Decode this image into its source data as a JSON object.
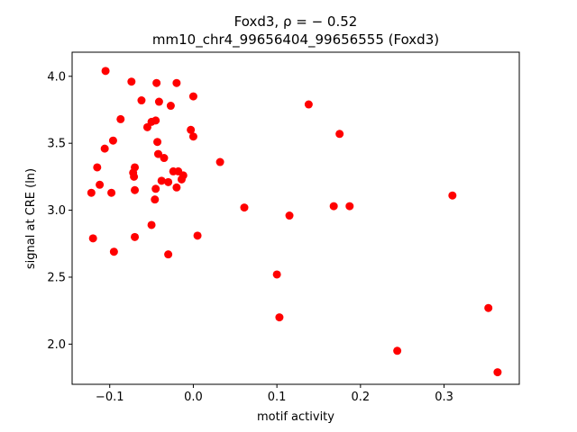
{
  "chart_data": {
    "type": "scatter",
    "title_line1": "Foxd3, ρ = − 0.52",
    "title_line2": "mm10_chr4_99656404_99656555 (Foxd3)",
    "xlabel": "motif activity",
    "ylabel": "signal at CRE (ln)",
    "xlim": [
      -0.145,
      0.39
    ],
    "ylim": [
      1.7,
      4.18
    ],
    "x_ticks": [
      -0.1,
      0.0,
      0.1,
      0.2,
      0.3
    ],
    "x_tick_labels": [
      "−0.1",
      "0.0",
      "0.1",
      "0.2",
      "0.3"
    ],
    "y_ticks": [
      2.0,
      2.5,
      3.0,
      3.5,
      4.0
    ],
    "y_tick_labels": [
      "2.0",
      "2.5",
      "3.0",
      "3.5",
      "4.0"
    ],
    "grid": false,
    "marker_color": "#ff0000",
    "points": [
      {
        "x": -0.105,
        "y": 4.04
      },
      {
        "x": -0.074,
        "y": 3.96
      },
      {
        "x": -0.044,
        "y": 3.95
      },
      {
        "x": -0.02,
        "y": 3.95
      },
      {
        "x": 0.0,
        "y": 3.85
      },
      {
        "x": -0.062,
        "y": 3.82
      },
      {
        "x": -0.041,
        "y": 3.81
      },
      {
        "x": -0.027,
        "y": 3.78
      },
      {
        "x": 0.138,
        "y": 3.79
      },
      {
        "x": -0.087,
        "y": 3.68
      },
      {
        "x": -0.05,
        "y": 3.66
      },
      {
        "x": -0.045,
        "y": 3.67
      },
      {
        "x": -0.055,
        "y": 3.62
      },
      {
        "x": -0.003,
        "y": 3.6
      },
      {
        "x": 0.0,
        "y": 3.55
      },
      {
        "x": 0.175,
        "y": 3.57
      },
      {
        "x": -0.096,
        "y": 3.52
      },
      {
        "x": -0.043,
        "y": 3.51
      },
      {
        "x": -0.106,
        "y": 3.46
      },
      {
        "x": -0.042,
        "y": 3.42
      },
      {
        "x": -0.035,
        "y": 3.39
      },
      {
        "x": 0.032,
        "y": 3.36
      },
      {
        "x": -0.115,
        "y": 3.32
      },
      {
        "x": -0.07,
        "y": 3.32
      },
      {
        "x": -0.072,
        "y": 3.28
      },
      {
        "x": -0.024,
        "y": 3.29
      },
      {
        "x": -0.018,
        "y": 3.29
      },
      {
        "x": -0.071,
        "y": 3.25
      },
      {
        "x": -0.038,
        "y": 3.22
      },
      {
        "x": -0.012,
        "y": 3.26
      },
      {
        "x": -0.014,
        "y": 3.23
      },
      {
        "x": -0.03,
        "y": 3.21
      },
      {
        "x": -0.112,
        "y": 3.19
      },
      {
        "x": -0.02,
        "y": 3.17
      },
      {
        "x": -0.045,
        "y": 3.16
      },
      {
        "x": -0.07,
        "y": 3.15
      },
      {
        "x": -0.122,
        "y": 3.13
      },
      {
        "x": -0.098,
        "y": 3.13
      },
      {
        "x": -0.046,
        "y": 3.08
      },
      {
        "x": 0.31,
        "y": 3.11
      },
      {
        "x": 0.061,
        "y": 3.02
      },
      {
        "x": 0.168,
        "y": 3.03
      },
      {
        "x": 0.187,
        "y": 3.03
      },
      {
        "x": 0.115,
        "y": 2.96
      },
      {
        "x": -0.05,
        "y": 2.89
      },
      {
        "x": -0.12,
        "y": 2.79
      },
      {
        "x": -0.07,
        "y": 2.8
      },
      {
        "x": 0.005,
        "y": 2.81
      },
      {
        "x": -0.095,
        "y": 2.69
      },
      {
        "x": -0.03,
        "y": 2.67
      },
      {
        "x": 0.1,
        "y": 2.52
      },
      {
        "x": 0.353,
        "y": 2.27
      },
      {
        "x": 0.103,
        "y": 2.2
      },
      {
        "x": 0.244,
        "y": 1.95
      },
      {
        "x": 0.364,
        "y": 1.79
      }
    ]
  }
}
